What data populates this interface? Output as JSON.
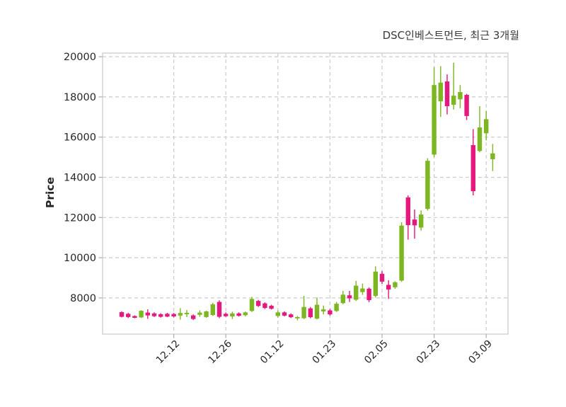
{
  "header": {
    "title": "DSC인베스트먼트, 최근 3개월"
  },
  "chart_data": {
    "type": "candlestick",
    "title": "DSC인베스트먼트, 최근 3개월",
    "xlabel": "",
    "ylabel": "Price",
    "grid": true,
    "ylim": [
      6200,
      20180
    ],
    "yticks": [
      8000,
      10000,
      12000,
      14000,
      16000,
      18000,
      20000
    ],
    "xtick_labels": [
      "12.12",
      "12.26",
      "01.12",
      "01.23",
      "02.05",
      "02.23",
      "03.09"
    ],
    "xtick_indices": [
      8,
      16,
      24,
      32,
      40,
      48,
      56
    ],
    "up_color": "#7CB621",
    "down_color": "#E5187D",
    "grid_color": "#CBCBCB",
    "spine_color": "#D4D4D4",
    "tick_color": "#ADADAD",
    "label_color": "#262626",
    "ohlc_format": [
      "open",
      "high",
      "low",
      "close"
    ],
    "candles": [
      [
        7290,
        7330,
        7030,
        7060
      ],
      [
        7210,
        7260,
        7000,
        7050
      ],
      [
        7100,
        7130,
        6990,
        7010
      ],
      [
        7030,
        7390,
        7000,
        7360
      ],
      [
        7270,
        7430,
        6960,
        7130
      ],
      [
        7230,
        7280,
        7050,
        7090
      ],
      [
        7190,
        7240,
        7020,
        7060
      ],
      [
        7210,
        7260,
        7040,
        7070
      ],
      [
        7200,
        7250,
        7030,
        7080
      ],
      [
        7120,
        7490,
        6920,
        7250
      ],
      [
        7190,
        7400,
        7050,
        7260
      ],
      [
        7130,
        7180,
        6900,
        6950
      ],
      [
        7160,
        7380,
        7060,
        7270
      ],
      [
        7050,
        7360,
        7010,
        7330
      ],
      [
        7150,
        7760,
        7100,
        7680
      ],
      [
        7800,
        7880,
        6990,
        7060
      ],
      [
        7210,
        7280,
        7060,
        7090
      ],
      [
        7080,
        7320,
        6950,
        7230
      ],
      [
        7230,
        7280,
        7070,
        7110
      ],
      [
        7140,
        7320,
        7080,
        7280
      ],
      [
        7350,
        8050,
        7300,
        7950
      ],
      [
        7850,
        7900,
        7550,
        7600
      ],
      [
        7730,
        7780,
        7450,
        7500
      ],
      [
        7610,
        7660,
        7420,
        7460
      ],
      [
        7100,
        7380,
        7020,
        7280
      ],
      [
        7280,
        7330,
        7080,
        7120
      ],
      [
        7180,
        7230,
        7000,
        7040
      ],
      [
        6980,
        7100,
        6880,
        7050
      ],
      [
        6990,
        8100,
        6950,
        7550
      ],
      [
        7480,
        7550,
        6990,
        7040
      ],
      [
        6970,
        8020,
        6930,
        7660
      ],
      [
        7330,
        7620,
        7180,
        7430
      ],
      [
        7380,
        7450,
        7120,
        7180
      ],
      [
        7350,
        7800,
        7300,
        7710
      ],
      [
        7740,
        8350,
        7690,
        8160
      ],
      [
        8130,
        8350,
        7800,
        7980
      ],
      [
        7910,
        8850,
        7850,
        8610
      ],
      [
        8290,
        8710,
        8150,
        8470
      ],
      [
        8460,
        8520,
        7790,
        7890
      ],
      [
        8100,
        9570,
        8020,
        9310
      ],
      [
        9200,
        9340,
        8700,
        8810
      ],
      [
        8650,
        8880,
        7950,
        8420
      ],
      [
        8530,
        8830,
        8450,
        8780
      ],
      [
        8860,
        11760,
        8800,
        11600
      ],
      [
        13000,
        13100,
        10900,
        11620
      ],
      [
        11900,
        12400,
        10950,
        11610
      ],
      [
        11500,
        12350,
        11350,
        12150
      ],
      [
        12430,
        14950,
        12350,
        14820
      ],
      [
        15130,
        19470,
        15000,
        18590
      ],
      [
        17780,
        19530,
        17010,
        18710
      ],
      [
        18770,
        19120,
        17130,
        17540
      ],
      [
        17610,
        19700,
        17370,
        18060
      ],
      [
        17880,
        18590,
        17440,
        18240
      ],
      [
        18100,
        18150,
        16850,
        17050
      ],
      [
        15600,
        16400,
        13100,
        13310
      ],
      [
        15310,
        17540,
        15250,
        16480
      ],
      [
        16190,
        17300,
        15840,
        16890
      ],
      [
        14900,
        15660,
        14310,
        15190
      ]
    ]
  }
}
